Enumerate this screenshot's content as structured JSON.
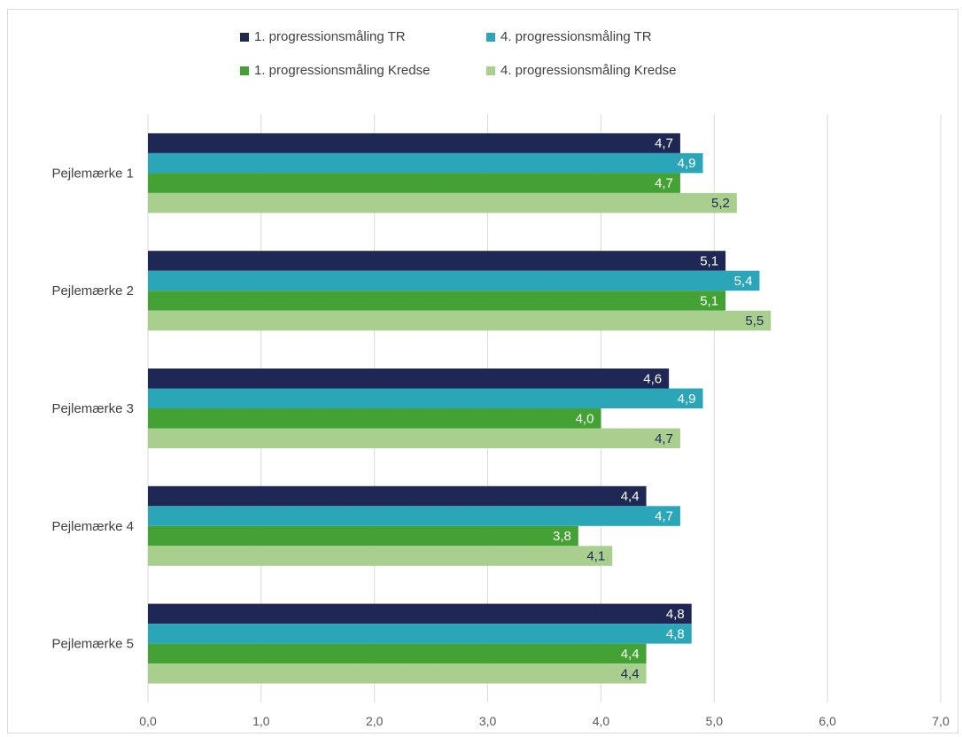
{
  "chart_data": {
    "type": "bar",
    "orientation": "horizontal",
    "categories": [
      "Pejlemærke 1",
      "Pejlemærke 2",
      "Pejlemærke 3",
      "Pejlemærke 4",
      "Pejlemærke 5"
    ],
    "series": [
      {
        "name": "1. progressionsmåling TR",
        "color": "#1f2754",
        "label_color": "#ffffff",
        "values": [
          4.7,
          5.1,
          4.6,
          4.4,
          4.8
        ],
        "labels": [
          "4,7",
          "5,1",
          "4,6",
          "4,4",
          "4,8"
        ]
      },
      {
        "name": "4. progressionsmåling TR",
        "color": "#2ba6b8",
        "label_color": "#ffffff",
        "values": [
          4.9,
          5.4,
          4.9,
          4.7,
          4.8
        ],
        "labels": [
          "4,9",
          "5,4",
          "4,9",
          "4,7",
          "4,8"
        ]
      },
      {
        "name": "1. progressionsmåling Kredse",
        "color": "#44a234",
        "label_color": "#ffffff",
        "values": [
          4.7,
          5.1,
          4.0,
          3.8,
          4.4
        ],
        "labels": [
          "4,7",
          "5,1",
          "4,0",
          "3,8",
          "4,4"
        ]
      },
      {
        "name": "4. progressionsmåling Kredse",
        "color": "#a9cf8f",
        "label_color": "#1f2754",
        "values": [
          5.2,
          5.5,
          4.7,
          4.1,
          4.4
        ],
        "labels": [
          "5,2",
          "5,5",
          "4,7",
          "4,1",
          "4,4"
        ]
      }
    ],
    "xlim": [
      0,
      7
    ],
    "x_ticks": [
      0,
      1,
      2,
      3,
      4,
      5,
      6,
      7
    ],
    "x_tick_labels": [
      "0,0",
      "1,0",
      "2,0",
      "3,0",
      "4,0",
      "5,0",
      "6,0",
      "7,0"
    ],
    "grid": "vertical",
    "legend": "top",
    "title": "",
    "xlabel": "",
    "ylabel": ""
  }
}
